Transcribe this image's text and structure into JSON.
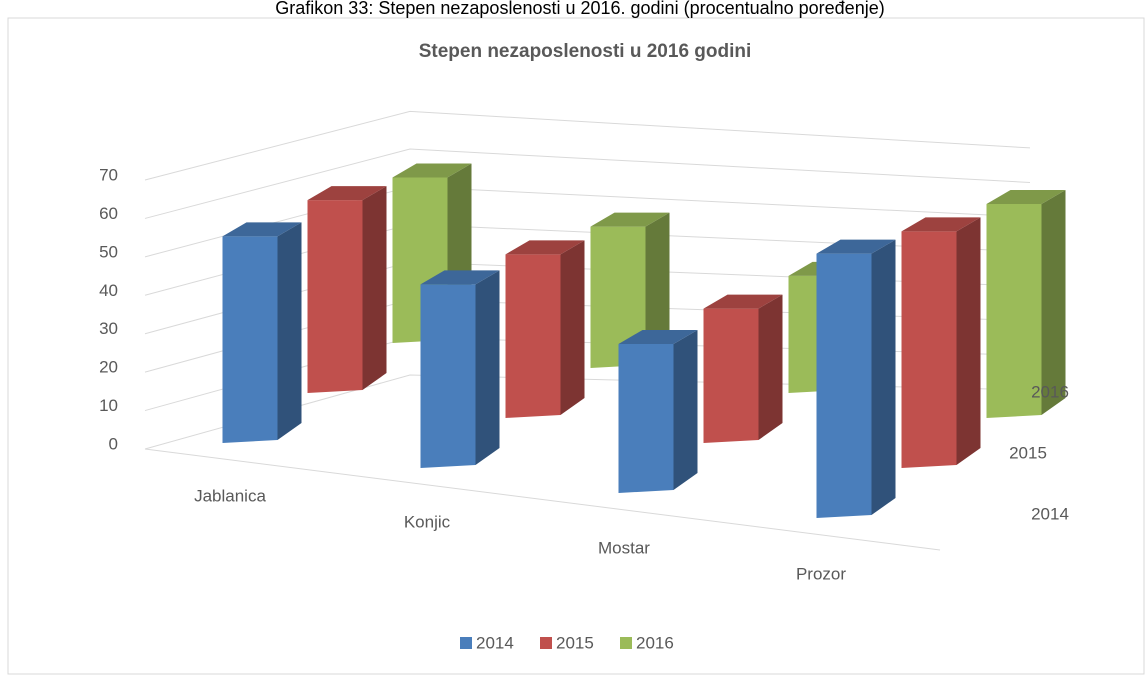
{
  "chart_data": {
    "type": "bar3d",
    "caption": "Grafikon 33: Stepen nezaposlenosti u 2016. godini (procentualno poređenje)",
    "title": "Stepen nezaposlenosti u 2016 godini",
    "categories": [
      "Jablanica",
      "Konjic",
      "Mostar",
      "Prozor"
    ],
    "series": [
      {
        "name": "2014",
        "color": "#4a7ebb",
        "values": [
          53,
          47,
          38,
          68
        ]
      },
      {
        "name": "2015",
        "color": "#c0504d",
        "values": [
          52,
          44,
          36,
          64
        ]
      },
      {
        "name": "2016",
        "color": "#9bbb59",
        "values": [
          47,
          40,
          33,
          61
        ]
      }
    ],
    "ylim": [
      0,
      70
    ],
    "yticks": [
      0,
      10,
      20,
      30,
      40,
      50,
      60,
      70
    ],
    "grid": true,
    "legend": "bottom"
  }
}
